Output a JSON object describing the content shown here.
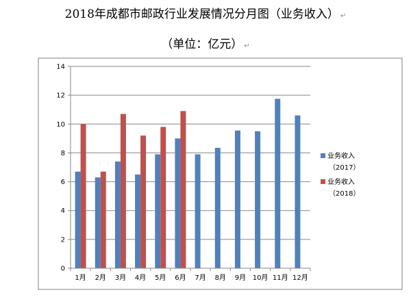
{
  "page": {
    "title_line1": "2018年成都市邮政行业发展情况分月图（业务收入）",
    "title_line2": "（单位：亿元）",
    "para_mark": "↵"
  },
  "chart_data": {
    "type": "bar",
    "title": "",
    "xlabel": "",
    "ylabel": "",
    "categories": [
      "1月",
      "2月",
      "3月",
      "4月",
      "5月",
      "6月",
      "7月",
      "8月",
      "9月",
      "10月",
      "11月",
      "12月"
    ],
    "series": [
      {
        "name_line1": "业务收入",
        "name_line2": "（2017）",
        "color": "#4F81BD",
        "values": [
          6.7,
          6.3,
          7.4,
          6.5,
          7.9,
          9.0,
          7.9,
          8.35,
          9.55,
          9.5,
          11.75,
          10.6
        ]
      },
      {
        "name_line1": "业务收入",
        "name_line2": "（2018）",
        "color": "#C0504D",
        "values": [
          10.0,
          6.7,
          10.7,
          9.2,
          9.8,
          10.9,
          null,
          null,
          null,
          null,
          null,
          null
        ]
      }
    ],
    "ylim": [
      0,
      14
    ],
    "yticks": [
      0,
      2,
      4,
      6,
      8,
      10,
      12,
      14
    ],
    "grid": true,
    "legend_position": "right"
  }
}
